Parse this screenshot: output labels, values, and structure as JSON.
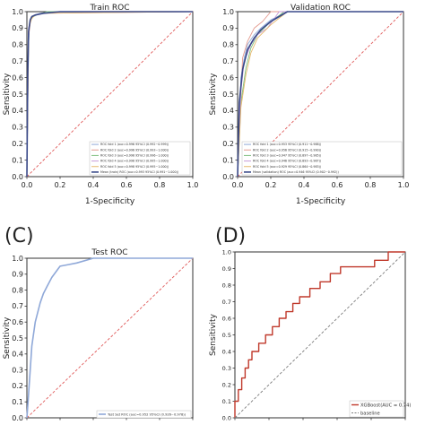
{
  "panel_labels": [
    "(C)",
    "(D)"
  ],
  "chart_data": [
    {
      "type": "line",
      "title": "Train ROC",
      "xlabel": "1-Specificity",
      "ylabel": "Sensitivity",
      "xlim": [
        0,
        1
      ],
      "ylim": [
        0,
        1
      ],
      "xticks": [
        "0.0",
        "0.2",
        "0.4",
        "0.6",
        "0.8",
        "1.0"
      ],
      "yticks": [
        "0.0",
        "0.1",
        "0.2",
        "0.3",
        "0.4",
        "0.5",
        "0.6",
        "0.7",
        "0.8",
        "0.9",
        "1.0"
      ],
      "grid": false,
      "legend_position": "lower-right",
      "diagonal": {
        "color": "#e05a5a",
        "style": "dashed"
      },
      "series": [
        {
          "name": "ROC fold 1 (auc=0.996 95%CI (0.992~0.999))",
          "color": "#8fa8d8",
          "x": [
            0,
            0.01,
            0.015,
            0.02,
            0.03,
            0.05,
            0.08,
            0.15,
            1
          ],
          "y": [
            0,
            0.8,
            0.9,
            0.95,
            0.97,
            0.98,
            0.99,
            0.995,
            1
          ]
        },
        {
          "name": "ROC fold 2 (auc=0.996 95%CI (0.993~1.000))",
          "color": "#e39a8e",
          "x": [
            0,
            0.01,
            0.02,
            0.03,
            0.05,
            0.1,
            0.2,
            1
          ],
          "y": [
            0,
            0.85,
            0.93,
            0.97,
            0.98,
            0.99,
            1,
            1
          ]
        },
        {
          "name": "ROC fold 3 (auc=0.998 95%CI (0.996~1.000))",
          "color": "#7fbf7f",
          "x": [
            0,
            0.01,
            0.02,
            0.04,
            0.07,
            0.12,
            1
          ],
          "y": [
            0,
            0.88,
            0.95,
            0.97,
            0.985,
            1,
            1
          ]
        },
        {
          "name": "ROC fold 4 (auc=0.998 95%CI (0.995~1.000))",
          "color": "#c89bd8",
          "x": [
            0,
            0.01,
            0.02,
            0.03,
            0.06,
            0.1,
            1
          ],
          "y": [
            0,
            0.9,
            0.94,
            0.97,
            0.98,
            0.99,
            1
          ]
        },
        {
          "name": "ROC fold 5 (auc=0.998 95%CI (0.995~1.000))",
          "color": "#e6b86a",
          "x": [
            0,
            0.01,
            0.02,
            0.03,
            0.05,
            0.1,
            1
          ],
          "y": [
            0,
            0.87,
            0.93,
            0.96,
            0.98,
            0.99,
            1
          ]
        },
        {
          "name": "Mean (train) ROC (auc=0.993 95%CI (0.991~1.000))",
          "color": "#3a4a8a",
          "width": 1.6,
          "x": [
            0,
            0.005,
            0.01,
            0.02,
            0.03,
            0.05,
            0.1,
            0.2,
            1
          ],
          "y": [
            0,
            0.6,
            0.88,
            0.95,
            0.97,
            0.98,
            0.99,
            1,
            1
          ]
        }
      ]
    },
    {
      "type": "line",
      "title": "Validation ROC",
      "xlabel": "1-Specificity",
      "ylabel": "Sensitivity",
      "xlim": [
        0,
        1
      ],
      "ylim": [
        0,
        1
      ],
      "xticks": [
        "0.0",
        "0.2",
        "0.4",
        "0.6",
        "0.8",
        "1.0"
      ],
      "yticks": [
        "0.0",
        "0.1",
        "0.2",
        "0.3",
        "0.4",
        "0.5",
        "0.6",
        "0.7",
        "0.8",
        "0.9",
        "1.0"
      ],
      "grid": false,
      "legend_position": "lower-right",
      "diagonal": {
        "color": "#e05a5a",
        "style": "dashed"
      },
      "series": [
        {
          "name": "ROC fold 1 (auc=0.953 95%CI (0.911~0.988))",
          "color": "#8fa8d8",
          "x": [
            0,
            0.02,
            0.04,
            0.06,
            0.1,
            0.14,
            0.2,
            0.3,
            1
          ],
          "y": [
            0,
            0.6,
            0.72,
            0.8,
            0.86,
            0.9,
            0.95,
            1,
            1
          ]
        },
        {
          "name": "ROC fold 2 (auc=0.956 95%CI (0.915~0.990))",
          "color": "#e39a8e",
          "x": [
            0,
            0.02,
            0.03,
            0.06,
            0.1,
            0.15,
            0.2,
            1
          ],
          "y": [
            0,
            0.5,
            0.72,
            0.82,
            0.9,
            0.94,
            1,
            1
          ]
        },
        {
          "name": "ROC fold 3 (auc=0.947 95%CI (0.897~0.985))",
          "color": "#7fbf7f",
          "x": [
            0,
            0.02,
            0.05,
            0.08,
            0.12,
            0.18,
            0.28,
            1
          ],
          "y": [
            0,
            0.45,
            0.66,
            0.78,
            0.86,
            0.92,
            1,
            1
          ]
        },
        {
          "name": "ROC fold 4 (auc=0.946 95%CI (0.893~0.987))",
          "color": "#c89bd8",
          "x": [
            0,
            0.02,
            0.04,
            0.08,
            0.12,
            0.18,
            0.25,
            1
          ],
          "y": [
            0,
            0.52,
            0.7,
            0.8,
            0.86,
            0.9,
            1,
            1
          ]
        },
        {
          "name": "ROC fold 5 (auc=0.929 95%CI (0.864~0.983))",
          "color": "#e6b86a",
          "x": [
            0,
            0.02,
            0.05,
            0.08,
            0.12,
            0.2,
            0.3,
            1
          ],
          "y": [
            0,
            0.42,
            0.62,
            0.75,
            0.84,
            0.92,
            1,
            1
          ]
        },
        {
          "name": "Mean (validation) ROC (auc=0.946 95%CI (0.902~0.992))",
          "color": "#3a4a8a",
          "width": 1.6,
          "x": [
            0,
            0.01,
            0.03,
            0.06,
            0.1,
            0.14,
            0.2,
            0.3,
            1
          ],
          "y": [
            0,
            0.45,
            0.65,
            0.77,
            0.84,
            0.89,
            0.94,
            1,
            1
          ]
        }
      ]
    },
    {
      "type": "line",
      "title": "Test ROC",
      "xlabel": "",
      "ylabel": "Sensitivity",
      "xlim": [
        0,
        1
      ],
      "ylim": [
        0,
        1
      ],
      "yticks": [
        "0.0",
        "0.1",
        "0.2",
        "0.3",
        "0.4",
        "0.5",
        "0.6",
        "0.7",
        "0.8",
        "0.9",
        "1.0"
      ],
      "grid": false,
      "legend_position": "lower-right",
      "diagonal": {
        "color": "#e05a5a",
        "style": "dashed"
      },
      "series": [
        {
          "name": "Test Set ROC (auc=0.952 95%CI (0.926~0.978))",
          "color": "#8fa8d8",
          "width": 1.6,
          "x": [
            0,
            0.01,
            0.02,
            0.03,
            0.05,
            0.08,
            0.1,
            0.12,
            0.15,
            0.2,
            0.25,
            0.3,
            0.4,
            1
          ],
          "y": [
            0,
            0.15,
            0.3,
            0.45,
            0.6,
            0.72,
            0.78,
            0.82,
            0.88,
            0.95,
            0.96,
            0.97,
            1,
            1
          ]
        }
      ]
    },
    {
      "type": "line",
      "title": "",
      "xlabel": "",
      "ylabel": "Sensitivity",
      "xlim": [
        0,
        1
      ],
      "ylim": [
        0,
        1
      ],
      "yticks": [
        "0.0",
        "0.1",
        "0.2",
        "0.3",
        "0.4",
        "0.5",
        "0.6",
        "0.7",
        "0.8",
        "0.9",
        "1.0"
      ],
      "grid": false,
      "legend_position": "lower-right",
      "series": [
        {
          "name": "XGBoost(AUC = 0.74)",
          "color": "#c0392b",
          "width": 1.4,
          "step": true,
          "x": [
            0,
            0,
            0.02,
            0.02,
            0.04,
            0.04,
            0.06,
            0.06,
            0.08,
            0.08,
            0.1,
            0.1,
            0.14,
            0.14,
            0.18,
            0.18,
            0.22,
            0.22,
            0.26,
            0.26,
            0.3,
            0.3,
            0.34,
            0.34,
            0.38,
            0.38,
            0.44,
            0.44,
            0.5,
            0.5,
            0.56,
            0.56,
            0.62,
            0.62,
            0.7,
            0.7,
            0.82,
            0.82,
            0.9,
            0.9,
            1
          ],
          "y": [
            0,
            0.1,
            0.1,
            0.17,
            0.17,
            0.24,
            0.24,
            0.3,
            0.3,
            0.35,
            0.35,
            0.4,
            0.4,
            0.45,
            0.45,
            0.5,
            0.5,
            0.55,
            0.55,
            0.6,
            0.6,
            0.64,
            0.64,
            0.69,
            0.69,
            0.73,
            0.73,
            0.78,
            0.78,
            0.82,
            0.82,
            0.87,
            0.87,
            0.91,
            0.91,
            0.91,
            0.91,
            0.95,
            0.95,
            1,
            1
          ]
        },
        {
          "name": "baseline",
          "color": "#7d7d7d",
          "style": "dashed",
          "x": [
            0,
            1
          ],
          "y": [
            0,
            1
          ]
        }
      ]
    }
  ]
}
